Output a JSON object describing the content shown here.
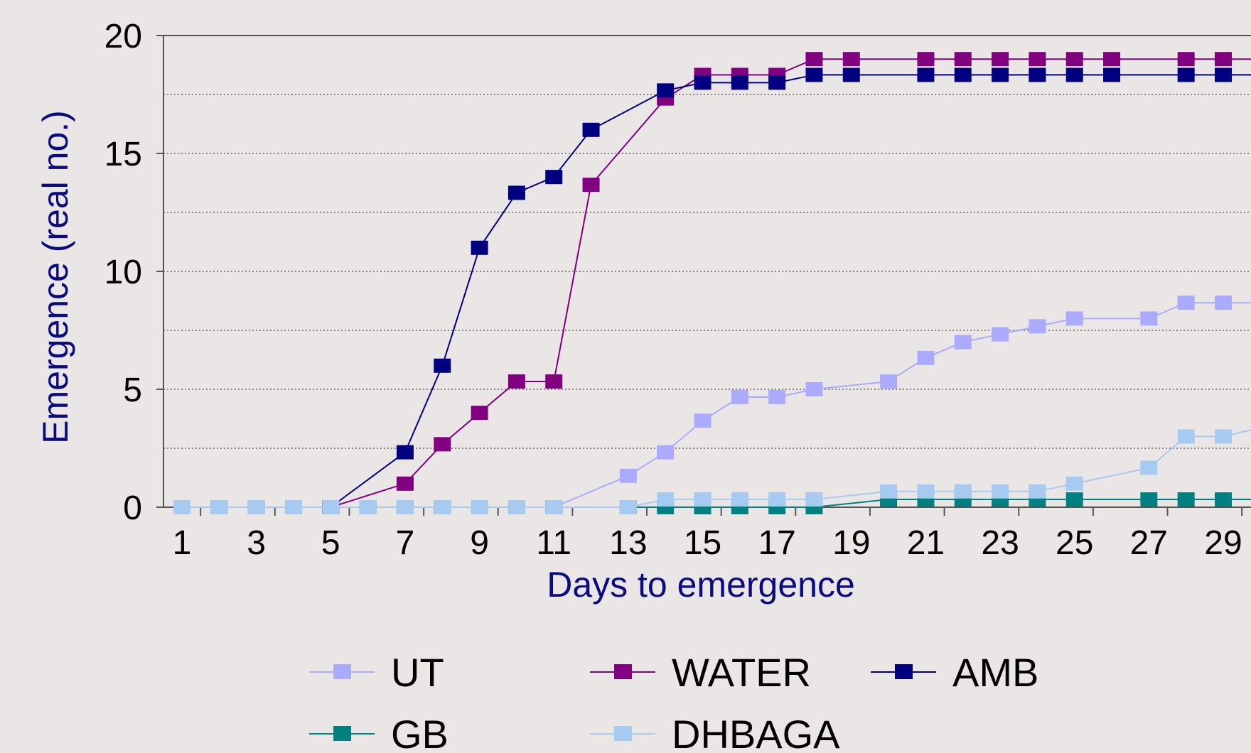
{
  "chart_data": {
    "type": "line",
    "xlabel": "Days to emergence",
    "ylabel": "Emergence (real no.)",
    "xlim": [
      0.5,
      29.9
    ],
    "ylim": [
      0,
      20
    ],
    "x_tick_labels": [
      "1",
      "3",
      "5",
      "7",
      "9",
      "11",
      "13",
      "15",
      "17",
      "19",
      "21",
      "23",
      "25",
      "27",
      "29"
    ],
    "y_tick_labels": [
      "0",
      "5",
      "10",
      "15",
      "20"
    ],
    "x_tick_values": [
      1,
      3,
      5,
      7,
      9,
      11,
      13,
      15,
      17,
      19,
      21,
      23,
      25,
      27,
      29
    ],
    "y_tick_values": [
      0,
      5,
      10,
      15,
      20
    ],
    "grid": "horizontal dotted",
    "legend_position": "bottom",
    "series": [
      {
        "name": "UT",
        "color": "#aaaaff",
        "points": [
          [
            1,
            0
          ],
          [
            2,
            0
          ],
          [
            3,
            0
          ],
          [
            4,
            0
          ],
          [
            5,
            0
          ],
          [
            6,
            0
          ],
          [
            7,
            0
          ],
          [
            8,
            0
          ],
          [
            9,
            0
          ],
          [
            10,
            0
          ],
          [
            11,
            0
          ],
          [
            13,
            1.33
          ],
          [
            14,
            2.33
          ],
          [
            15,
            3.67
          ],
          [
            16,
            4.67
          ],
          [
            17,
            4.67
          ],
          [
            18,
            5
          ],
          [
            20,
            5.33
          ],
          [
            21,
            6.33
          ],
          [
            22,
            7
          ],
          [
            23,
            7.33
          ],
          [
            24,
            7.67
          ],
          [
            25,
            8
          ],
          [
            27,
            8
          ],
          [
            28,
            8.67
          ],
          [
            29,
            8.67
          ],
          [
            29.9,
            8.67
          ]
        ]
      },
      {
        "name": "WATER",
        "color": "#800080",
        "points": [
          [
            5,
            0
          ],
          [
            7,
            1
          ],
          [
            8,
            2.67
          ],
          [
            9,
            4
          ],
          [
            10,
            5.33
          ],
          [
            11,
            5.33
          ],
          [
            12,
            13.67
          ],
          [
            14,
            17.33
          ],
          [
            15,
            18.33
          ],
          [
            16,
            18.33
          ],
          [
            17,
            18.33
          ],
          [
            18,
            19
          ],
          [
            19,
            19
          ],
          [
            21,
            19
          ],
          [
            22,
            19
          ],
          [
            23,
            19
          ],
          [
            24,
            19
          ],
          [
            25,
            19
          ],
          [
            26,
            19
          ],
          [
            28,
            19
          ],
          [
            29,
            19
          ],
          [
            29.9,
            19
          ]
        ]
      },
      {
        "name": "AMB",
        "color": "#000080",
        "points": [
          [
            5,
            0
          ],
          [
            7,
            2.33
          ],
          [
            8,
            6
          ],
          [
            9,
            11
          ],
          [
            10,
            13.33
          ],
          [
            11,
            14
          ],
          [
            12,
            16
          ],
          [
            14,
            17.67
          ],
          [
            15,
            18
          ],
          [
            16,
            18
          ],
          [
            17,
            18
          ],
          [
            18,
            18.33
          ],
          [
            19,
            18.33
          ],
          [
            21,
            18.33
          ],
          [
            22,
            18.33
          ],
          [
            23,
            18.33
          ],
          [
            24,
            18.33
          ],
          [
            25,
            18.33
          ],
          [
            26,
            18.33
          ],
          [
            28,
            18.33
          ],
          [
            29,
            18.33
          ],
          [
            29.9,
            18.33
          ]
        ]
      },
      {
        "name": "GB",
        "color": "#008080",
        "points": [
          [
            1,
            0
          ],
          [
            2,
            0
          ],
          [
            3,
            0
          ],
          [
            4,
            0
          ],
          [
            5,
            0
          ],
          [
            6,
            0
          ],
          [
            7,
            0
          ],
          [
            8,
            0
          ],
          [
            9,
            0
          ],
          [
            10,
            0
          ],
          [
            11,
            0
          ],
          [
            13,
            0
          ],
          [
            14,
            0
          ],
          [
            15,
            0
          ],
          [
            16,
            0
          ],
          [
            17,
            0
          ],
          [
            18,
            0
          ],
          [
            20,
            0.33
          ],
          [
            21,
            0.33
          ],
          [
            22,
            0.33
          ],
          [
            23,
            0.33
          ],
          [
            24,
            0.33
          ],
          [
            25,
            0.33
          ],
          [
            27,
            0.33
          ],
          [
            28,
            0.33
          ],
          [
            29,
            0.33
          ],
          [
            29.9,
            0.33
          ]
        ]
      },
      {
        "name": "DHBAGA",
        "color": "#a6caf0",
        "points": [
          [
            1,
            0
          ],
          [
            2,
            0
          ],
          [
            3,
            0
          ],
          [
            4,
            0
          ],
          [
            5,
            0
          ],
          [
            6,
            0
          ],
          [
            7,
            0
          ],
          [
            8,
            0
          ],
          [
            9,
            0
          ],
          [
            10,
            0
          ],
          [
            11,
            0
          ],
          [
            13,
            0
          ],
          [
            14,
            0.33
          ],
          [
            15,
            0.33
          ],
          [
            16,
            0.33
          ],
          [
            17,
            0.33
          ],
          [
            18,
            0.33
          ],
          [
            20,
            0.67
          ],
          [
            21,
            0.67
          ],
          [
            22,
            0.67
          ],
          [
            23,
            0.67
          ],
          [
            24,
            0.67
          ],
          [
            25,
            1
          ],
          [
            27,
            1.67
          ],
          [
            28,
            3
          ],
          [
            29,
            3
          ],
          [
            29.9,
            3.33
          ]
        ]
      }
    ]
  }
}
